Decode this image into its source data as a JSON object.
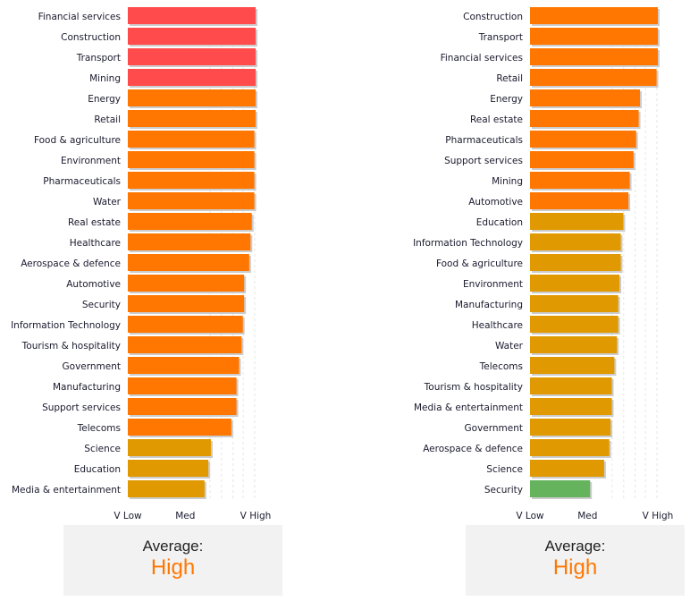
{
  "colors": {
    "very_high": "#ff4b4b",
    "high": "#ff7700",
    "medium": "#e09900",
    "low": "#66b35e",
    "shadow": "#cccccc",
    "grid": "#e6e6e6",
    "average_text": "#ff7700"
  },
  "chart_data": [
    {
      "type": "bar",
      "orientation": "horizontal",
      "title": "",
      "xlabel": "",
      "ylabel": "",
      "xlim": [
        0,
        100
      ],
      "x_ticks": [
        {
          "value": 0,
          "label": "V Low"
        },
        {
          "value": 45,
          "label": "Med"
        },
        {
          "value": 100,
          "label": "V High"
        }
      ],
      "grid": "vertical dashed",
      "categories": [
        "Financial services",
        "Construction",
        "Transport",
        "Mining",
        "Energy",
        "Retail",
        "Food & agriculture",
        "Environment",
        "Pharmaceuticals",
        "Water",
        "Real estate",
        "Healthcare",
        "Aerospace & defence",
        "Automotive",
        "Security",
        "Information Technology",
        "Tourism & hospitality",
        "Government",
        "Manufacturing",
        "Support services",
        "Telecoms",
        "Science",
        "Education",
        "Media & entertainment"
      ],
      "values": [
        100,
        100,
        100,
        100,
        100,
        100,
        99,
        99,
        99,
        99,
        97,
        96,
        95,
        91,
        91,
        90,
        89,
        87,
        85,
        85,
        81,
        65,
        63,
        60
      ],
      "levels": [
        "very_high",
        "very_high",
        "very_high",
        "very_high",
        "high",
        "high",
        "high",
        "high",
        "high",
        "high",
        "high",
        "high",
        "high",
        "high",
        "high",
        "high",
        "high",
        "high",
        "high",
        "high",
        "high",
        "medium",
        "medium",
        "medium"
      ],
      "average": {
        "label": "Average:",
        "value": "High"
      }
    },
    {
      "type": "bar",
      "orientation": "horizontal",
      "title": "",
      "xlabel": "",
      "ylabel": "",
      "xlim": [
        0,
        100
      ],
      "x_ticks": [
        {
          "value": 0,
          "label": "V Low"
        },
        {
          "value": 45,
          "label": "Med"
        },
        {
          "value": 100,
          "label": "V High"
        }
      ],
      "grid": "vertical dashed",
      "categories": [
        "Construction",
        "Transport",
        "Financial services",
        "Retail",
        "Energy",
        "Real estate",
        "Pharmaceuticals",
        "Support services",
        "Mining",
        "Automotive",
        "Education",
        "Information Technology",
        "Food & agriculture",
        "Environment",
        "Manufacturing",
        "Healthcare",
        "Water",
        "Telecoms",
        "Tourism & hospitality",
        "Media & entertainment",
        "Government",
        "Aerospace & defence",
        "Science",
        "Security"
      ],
      "values": [
        100,
        100,
        100,
        99,
        86,
        85,
        83,
        81,
        78,
        77,
        73,
        71,
        71,
        70,
        69,
        69,
        68,
        66,
        64,
        64,
        63,
        62,
        58,
        47
      ],
      "levels": [
        "high",
        "high",
        "high",
        "high",
        "high",
        "high",
        "high",
        "high",
        "high",
        "high",
        "medium",
        "medium",
        "medium",
        "medium",
        "medium",
        "medium",
        "medium",
        "medium",
        "medium",
        "medium",
        "medium",
        "medium",
        "medium",
        "low"
      ],
      "average": {
        "label": "Average:",
        "value": "High"
      }
    }
  ]
}
